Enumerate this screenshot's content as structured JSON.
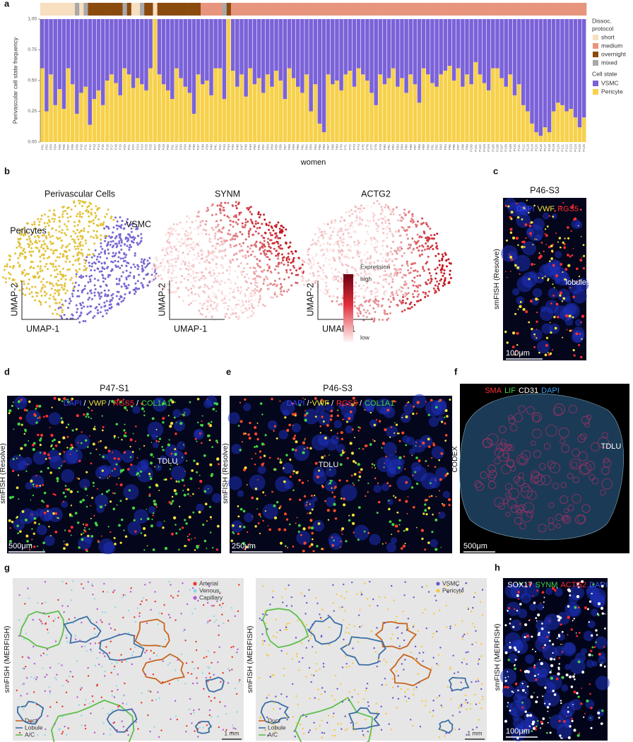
{
  "chart_data": {
    "type": "bar",
    "stacked": true,
    "panel_label": "a",
    "ylabel": "Perivascular cell state frequency",
    "xlabel": "women",
    "categories": [
      "P01",
      "P02",
      "P03",
      "P04",
      "P05",
      "P06",
      "P07",
      "P08",
      "P09",
      "P10",
      "P11",
      "P12",
      "P13",
      "P14",
      "P15",
      "P16",
      "P17",
      "P18",
      "P19",
      "P20",
      "P21",
      "P22",
      "P23",
      "P24",
      "P25",
      "P26",
      "P27",
      "P28",
      "P29",
      "P30",
      "P31",
      "P32",
      "P33",
      "P34",
      "P35",
      "P36",
      "P37",
      "P38",
      "P39",
      "P40",
      "P41",
      "P42",
      "P43",
      "P44",
      "P45",
      "P46",
      "P47",
      "P48",
      "P49",
      "P50",
      "P51",
      "P52",
      "P53",
      "P54",
      "P55",
      "P56",
      "P57",
      "P58",
      "P59",
      "P60",
      "P61",
      "P62",
      "P63",
      "P64",
      "P65",
      "P66",
      "P67",
      "P68",
      "P69",
      "P70",
      "P71",
      "P72",
      "P73",
      "P74",
      "P75",
      "P76",
      "P77",
      "P78",
      "P79",
      "P80",
      "P81",
      "P82",
      "P83",
      "P84",
      "P85",
      "P86",
      "P87",
      "P88",
      "P89",
      "P90",
      "P91",
      "P92",
      "P93",
      "P94",
      "P95",
      "P96",
      "P97",
      "P98",
      "P99",
      "P100",
      "P101",
      "P102",
      "P103",
      "P104",
      "P105",
      "P106",
      "P107",
      "P108",
      "P109",
      "P110",
      "P111",
      "P112",
      "P113",
      "P114",
      "P115",
      "P116",
      "P117",
      "P118",
      "P119",
      "P120",
      "P121",
      "P122",
      "P123",
      "P124",
      "P125",
      "P126"
    ],
    "series": [
      {
        "name": "Pericyte",
        "color": "#f7d14a",
        "values": [
          0.6,
          0.25,
          0.55,
          0.3,
          0.43,
          0.27,
          0.6,
          0.47,
          0.23,
          0.4,
          0.45,
          0.14,
          0.35,
          0.42,
          0.3,
          0.5,
          0.55,
          0.48,
          0.38,
          0.6,
          0.55,
          0.44,
          0.52,
          0.47,
          0.42,
          0.6,
          1.0,
          0.55,
          0.47,
          0.42,
          0.35,
          0.6,
          0.52,
          0.45,
          0.4,
          0.23,
          0.55,
          0.47,
          0.5,
          0.38,
          0.6,
          0.6,
          0.35,
          1.0,
          0.58,
          0.45,
          0.55,
          0.37,
          0.6,
          0.47,
          0.52,
          0.4,
          0.55,
          0.45,
          0.58,
          0.5,
          0.35,
          0.6,
          0.52,
          0.45,
          0.4,
          0.55,
          0.25,
          0.47,
          0.15,
          0.08,
          0.55,
          0.47,
          0.5,
          0.42,
          0.55,
          0.58,
          0.45,
          0.6,
          0.55,
          0.5,
          0.4,
          0.3,
          0.55,
          0.47,
          0.52,
          0.6,
          0.45,
          0.52,
          0.4,
          0.55,
          0.47,
          0.32,
          0.6,
          0.55,
          0.48,
          0.45,
          0.55,
          0.58,
          0.62,
          0.5,
          0.6,
          0.45,
          0.55,
          0.47,
          0.65,
          0.55,
          0.48,
          0.42,
          0.6,
          0.6,
          0.52,
          0.45,
          0.55,
          0.38,
          0.47,
          0.3,
          0.25,
          0.15,
          0.08,
          0.05,
          0.12,
          0.08,
          0.25,
          0.32,
          0.3,
          0.25,
          0.27,
          0.2,
          0.12,
          0.2
        ]
      },
      {
        "name": "VSMC",
        "color": "#7b62d8",
        "values": [
          0.4,
          0.75,
          0.45,
          0.7,
          0.57,
          0.73,
          0.4,
          0.53,
          0.77,
          0.6,
          0.55,
          0.86,
          0.65,
          0.58,
          0.7,
          0.5,
          0.45,
          0.52,
          0.62,
          0.4,
          0.45,
          0.56,
          0.48,
          0.53,
          0.58,
          0.4,
          0.0,
          0.45,
          0.53,
          0.58,
          0.65,
          0.4,
          0.48,
          0.55,
          0.6,
          0.77,
          0.45,
          0.53,
          0.5,
          0.62,
          0.4,
          0.4,
          0.65,
          0.0,
          0.42,
          0.55,
          0.45,
          0.63,
          0.4,
          0.53,
          0.48,
          0.6,
          0.45,
          0.55,
          0.42,
          0.5,
          0.65,
          0.4,
          0.48,
          0.55,
          0.6,
          0.45,
          0.75,
          0.53,
          0.85,
          0.92,
          0.45,
          0.53,
          0.5,
          0.58,
          0.45,
          0.42,
          0.55,
          0.4,
          0.45,
          0.5,
          0.6,
          0.7,
          0.45,
          0.53,
          0.48,
          0.4,
          0.55,
          0.48,
          0.6,
          0.45,
          0.53,
          0.68,
          0.4,
          0.45,
          0.52,
          0.55,
          0.45,
          0.42,
          0.38,
          0.5,
          0.4,
          0.55,
          0.45,
          0.53,
          0.35,
          0.45,
          0.52,
          0.58,
          0.4,
          0.4,
          0.48,
          0.55,
          0.45,
          0.62,
          0.53,
          0.7,
          0.75,
          0.85,
          0.92,
          0.95,
          0.88,
          0.92,
          0.75,
          0.68,
          0.7,
          0.75,
          0.73,
          0.8,
          0.88,
          0.8
        ]
      }
    ],
    "ylim": [
      0,
      1
    ],
    "yticks": [
      {
        "value": 0,
        "label": "0.00"
      },
      {
        "value": 0.25,
        "label": "0.25"
      },
      {
        "value": 0.5,
        "label": "0.50"
      },
      {
        "value": 0.75,
        "label": "0.75"
      },
      {
        "value": 1,
        "label": "1.00"
      }
    ],
    "legend_title": "Cell state",
    "protocol_legend_title": [
      "Dissoc.",
      "protocol"
    ],
    "protocol_levels": [
      {
        "name": "short",
        "color": "#f8dfc0"
      },
      {
        "name": "medium",
        "color": "#e8957d"
      },
      {
        "name": "overnight",
        "color": "#8b4a0e"
      },
      {
        "name": "mixed",
        "color": "#a9a9a9"
      }
    ],
    "protocol": [
      "short",
      "short",
      "short",
      "short",
      "short",
      "short",
      "short",
      "short",
      "mixed",
      "short",
      "mixed",
      "overnight",
      "overnight",
      "overnight",
      "overnight",
      "overnight",
      "overnight",
      "overnight",
      "overnight",
      "mixed",
      "overnight",
      "short",
      "short",
      "mixed",
      "overnight",
      "overnight",
      "short",
      "overnight",
      "overnight",
      "overnight",
      "overnight",
      "overnight",
      "overnight",
      "overnight",
      "overnight",
      "overnight",
      "overnight",
      "medium",
      "medium",
      "medium",
      "medium",
      "medium",
      "mixed",
      "overnight",
      "medium",
      "medium",
      "medium",
      "medium",
      "medium",
      "medium",
      "medium",
      "medium",
      "medium",
      "medium",
      "medium",
      "medium",
      "medium",
      "medium",
      "medium",
      "medium",
      "medium",
      "medium",
      "medium",
      "medium",
      "medium",
      "medium",
      "medium",
      "medium",
      "medium",
      "medium",
      "medium",
      "medium",
      "medium",
      "medium",
      "medium",
      "medium",
      "medium",
      "medium",
      "medium",
      "medium",
      "medium",
      "medium",
      "medium",
      "medium",
      "medium",
      "medium",
      "medium",
      "medium",
      "medium",
      "medium",
      "medium",
      "medium",
      "medium",
      "medium",
      "medium",
      "medium",
      "medium",
      "medium",
      "medium",
      "medium",
      "medium",
      "medium",
      "medium",
      "medium",
      "medium",
      "medium",
      "medium",
      "medium",
      "medium",
      "medium",
      "medium",
      "medium",
      "medium",
      "medium",
      "medium",
      "medium",
      "medium",
      "medium",
      "medium",
      "medium",
      "medium",
      "medium",
      "medium",
      "medium",
      "medium",
      "medium"
    ]
  },
  "panels": {
    "b": {
      "label": "b",
      "umaps": [
        {
          "title": "Perivascular Cells",
          "xlabel": "UMAP-1",
          "ylabel": "UMAP-2",
          "groups": [
            "Pericytes",
            "VSMC"
          ]
        },
        {
          "title": "SYNM",
          "xlabel": "UMAP-1",
          "ylabel": "UMAP-2"
        },
        {
          "title": "ACTG2",
          "xlabel": "UMAP-1",
          "ylabel": "UMAP-2"
        }
      ],
      "colorbar": {
        "title": "Expression",
        "high": "high",
        "low": "low"
      }
    },
    "c": {
      "label": "c",
      "title": "P46-S3",
      "stains": [
        "DAPI",
        "VWF",
        "RGS5"
      ],
      "side_label": "smFISH (Resolve)",
      "annotation": "lobules",
      "scale_bar": "100μm"
    },
    "d": {
      "label": "d",
      "title": "P47-S1",
      "stains": [
        "DAPI",
        "VWF",
        "RGS5",
        "COL1A1"
      ],
      "separator": "/",
      "side_label": "smFISH (Resolve)",
      "annotation": "TDLU",
      "scale_bar": "500μm"
    },
    "e": {
      "label": "e",
      "title": "P46-S3",
      "stains": [
        "DAPI",
        "VWF",
        "RGS5",
        "COL1A1"
      ],
      "separator": "/",
      "side_label": "smFISH (Resolve)",
      "annotation": "TDLU",
      "scale_bar": "250μm"
    },
    "f": {
      "label": "f",
      "stains": [
        "SMA",
        "LIF",
        "CD31",
        "DAPI"
      ],
      "side_label": "CODEX",
      "annotation": "TDLU",
      "scale_bar": "500μm"
    },
    "g": {
      "label": "g",
      "side_label": "smFISH (MERFISH)",
      "cell_legends": [
        [
          "Arterial",
          "Venous",
          "Capillary"
        ],
        [
          "VSMC",
          "Pericyte"
        ]
      ],
      "structure_legend": [
        "Duct",
        "Lobule",
        "A/C"
      ],
      "scale_bar": "1 mm"
    },
    "h": {
      "label": "h",
      "stains": [
        "SOX17",
        "SYNM",
        "ACTG2",
        "DAPI"
      ],
      "side_label": "smFISH (MERFISH)",
      "scale_bar": "100μm"
    }
  }
}
